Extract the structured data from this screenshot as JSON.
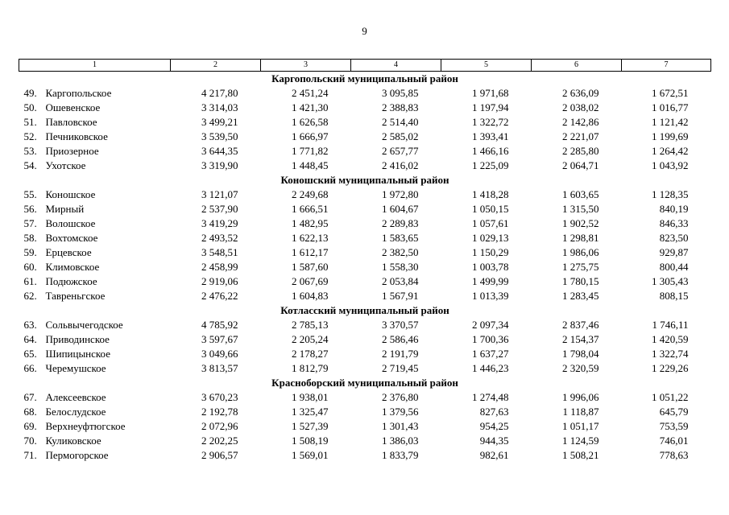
{
  "page": {
    "number": "9"
  },
  "table": {
    "column_headers": [
      "1",
      "2",
      "3",
      "4",
      "5",
      "6",
      "7"
    ],
    "sections": [
      {
        "title": "Каргопольский муниципальный район",
        "rows": [
          {
            "num": "49.",
            "name": "Каргопольское",
            "values": [
              "4 217,80",
              "2 451,24",
              "3 095,85",
              "1 971,68",
              "2 636,09",
              "1 672,51"
            ]
          },
          {
            "num": "50.",
            "name": "Ошевенское",
            "values": [
              "3 314,03",
              "1 421,30",
              "2 388,83",
              "1 197,94",
              "2 038,02",
              "1 016,77"
            ]
          },
          {
            "num": "51.",
            "name": "Павловское",
            "values": [
              "3 499,21",
              "1 626,58",
              "2 514,40",
              "1 322,72",
              "2 142,86",
              "1 121,42"
            ]
          },
          {
            "num": "52.",
            "name": "Печниковское",
            "values": [
              "3 539,50",
              "1 666,97",
              "2 585,02",
              "1 393,41",
              "2 221,07",
              "1 199,69"
            ]
          },
          {
            "num": "53.",
            "name": "Приозерное",
            "values": [
              "3 644,35",
              "1 771,82",
              "2 657,77",
              "1 466,16",
              "2 285,80",
              "1 264,42"
            ]
          },
          {
            "num": "54.",
            "name": "Ухотское",
            "values": [
              "3 319,90",
              "1 448,45",
              "2 416,02",
              "1 225,09",
              "2 064,71",
              "1 043,92"
            ]
          }
        ]
      },
      {
        "title": "Коношский муниципальный район",
        "rows": [
          {
            "num": "55.",
            "name": "Коношское",
            "values": [
              "3 121,07",
              "2 249,68",
              "1 972,80",
              "1 418,28",
              "1 603,65",
              "1 128,35"
            ]
          },
          {
            "num": "56.",
            "name": "Мирный",
            "values": [
              "2 537,90",
              "1 666,51",
              "1 604,67",
              "1 050,15",
              "1 315,50",
              "840,19"
            ]
          },
          {
            "num": "57.",
            "name": "Волошское",
            "values": [
              "3 419,29",
              "1 482,95",
              "2 289,83",
              "1 057,61",
              "1 902,52",
              "846,33"
            ]
          },
          {
            "num": "58.",
            "name": "Вохтомское",
            "values": [
              "2 493,52",
              "1 622,13",
              "1 583,65",
              "1 029,13",
              "1 298,81",
              "823,50"
            ]
          },
          {
            "num": "59.",
            "name": "Ерцевское",
            "values": [
              "3 548,51",
              "1 612,17",
              "2 382,50",
              "1 150,29",
              "1 986,06",
              "929,87"
            ]
          },
          {
            "num": "60.",
            "name": "Климовское",
            "values": [
              "2 458,99",
              "1 587,60",
              "1 558,30",
              "1 003,78",
              "1 275,75",
              "800,44"
            ]
          },
          {
            "num": "61.",
            "name": "Подюжское",
            "values": [
              "2 919,06",
              "2 067,69",
              "2 053,84",
              "1 499,99",
              "1 780,15",
              "1 305,43"
            ]
          },
          {
            "num": "62.",
            "name": "Тавреньгское",
            "values": [
              "2 476,22",
              "1 604,83",
              "1 567,91",
              "1 013,39",
              "1 283,45",
              "808,15"
            ]
          }
        ]
      },
      {
        "title": "Котласский муниципальный район",
        "rows": [
          {
            "num": "63.",
            "name": "Сольвычегодское",
            "values": [
              "4 785,92",
              "2 785,13",
              "3 370,57",
              "2 097,34",
              "2 837,46",
              "1 746,11"
            ]
          },
          {
            "num": "64.",
            "name": "Приводинское",
            "values": [
              "3 597,67",
              "2 205,24",
              "2 586,46",
              "1 700,36",
              "2 154,37",
              "1 420,59"
            ]
          },
          {
            "num": "65.",
            "name": "Шипицынское",
            "values": [
              "3 049,66",
              "2 178,27",
              "2 191,79",
              "1 637,27",
              "1 798,04",
              "1 322,74"
            ]
          },
          {
            "num": "66.",
            "name": "Черемушское",
            "values": [
              "3 813,57",
              "1 812,79",
              "2 719,45",
              "1 446,23",
              "2 320,59",
              "1 229,26"
            ]
          }
        ]
      },
      {
        "title": "Красноборский муниципальный район",
        "rows": [
          {
            "num": "67.",
            "name": "Алексеевское",
            "values": [
              "3 670,23",
              "1 938,01",
              "2 376,80",
              "1 274,48",
              "1 996,06",
              "1 051,22"
            ]
          },
          {
            "num": "68.",
            "name": "Белослудское",
            "values": [
              "2 192,78",
              "1 325,47",
              "1 379,56",
              "827,63",
              "1 118,87",
              "645,79"
            ]
          },
          {
            "num": "69.",
            "name": "Верхнеуфтюгское",
            "values": [
              "2 072,96",
              "1 527,39",
              "1 301,43",
              "954,25",
              "1 051,17",
              "753,59"
            ]
          },
          {
            "num": "70.",
            "name": "Куликовское",
            "values": [
              "2 202,25",
              "1 508,19",
              "1 386,03",
              "944,35",
              "1 124,59",
              "746,01"
            ]
          },
          {
            "num": "71.",
            "name": "Пермогорское",
            "values": [
              "2 906,57",
              "1 569,01",
              "1 833,79",
              "982,61",
              "1 508,21",
              "778,63"
            ]
          }
        ]
      }
    ]
  }
}
